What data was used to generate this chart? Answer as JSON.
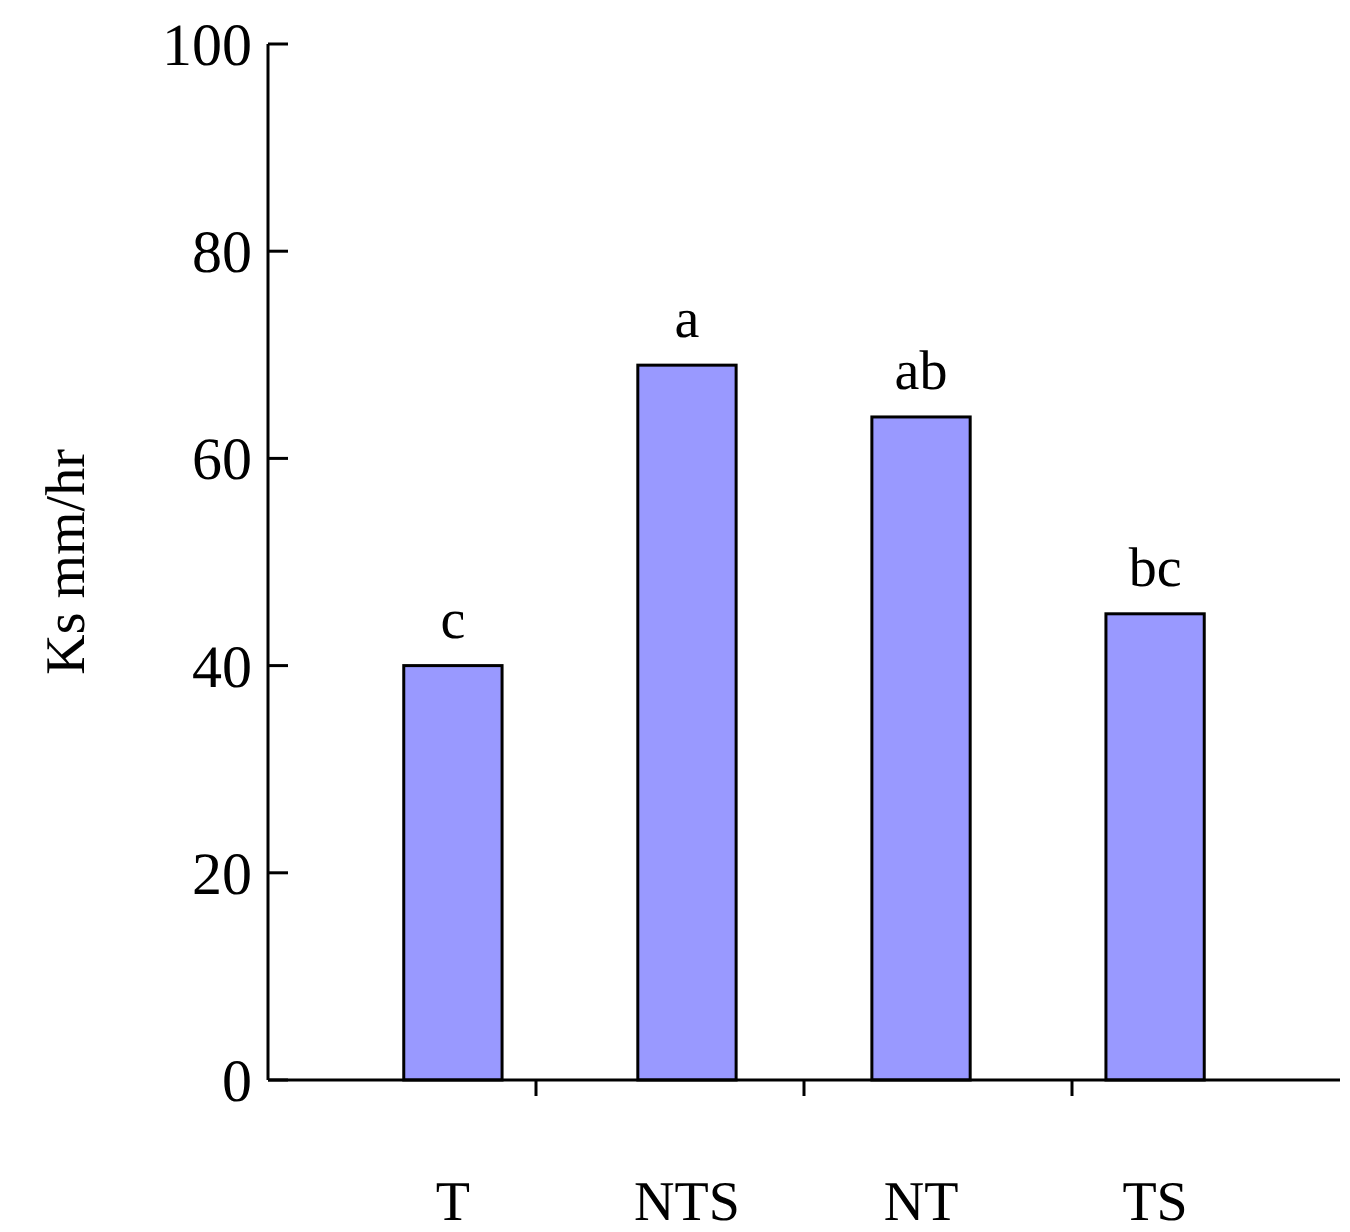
{
  "chart_data": {
    "type": "bar",
    "ylabel": "Ks mm/hr",
    "categories": [
      "T",
      "NTS",
      "NT",
      "TS"
    ],
    "values": [
      40,
      69,
      64,
      45
    ],
    "color": "#9999ff",
    "ylim": [
      0,
      100
    ],
    "yticks": [
      0,
      20,
      40,
      60,
      80,
      100
    ],
    "grid": false,
    "annotations": [
      {
        "text": "c",
        "x": "T",
        "y": 40
      },
      {
        "text": "a",
        "x": "NTS",
        "y": 69
      },
      {
        "text": "ab",
        "x": "NT",
        "y": 64
      },
      {
        "text": "bc",
        "x": "TS",
        "y": 45
      }
    ]
  }
}
